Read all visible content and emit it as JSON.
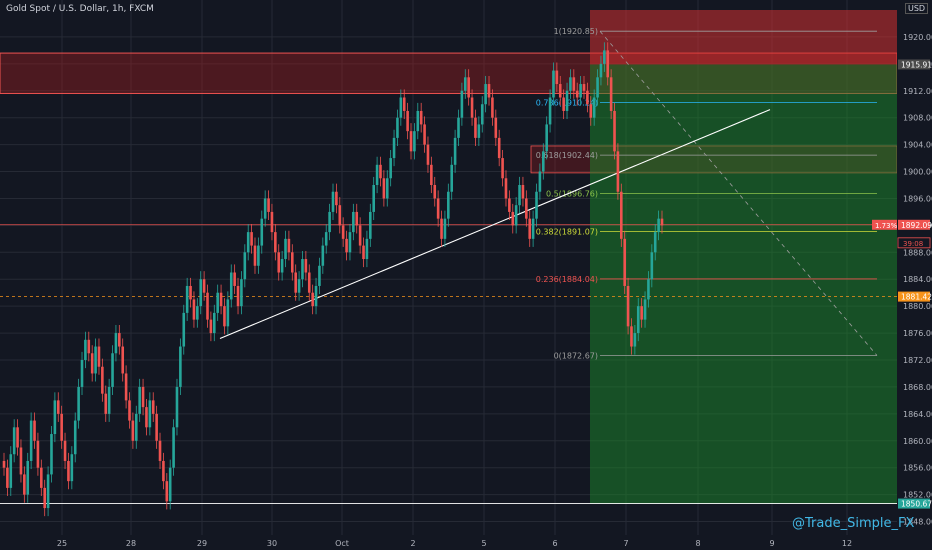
{
  "header": {
    "title": "Gold Spot / U.S. Dollar, 1h, FXCM",
    "currency": "USD"
  },
  "watermark": "@Trade_Simple_FX",
  "colors": {
    "bg": "#131722",
    "up": "#26a69a",
    "down": "#ef5350",
    "grid": "#262a35",
    "axis_text": "#b2b5be"
  },
  "chart_data": {
    "type": "candlestick",
    "title": "Gold Spot / U.S. Dollar, 1h, FXCM",
    "ylim": [
      1846,
      1924
    ],
    "y_ticks": [
      1848,
      1852,
      1856,
      1860,
      1864,
      1868,
      1872,
      1876,
      1880,
      1884,
      1888,
      1892,
      1896,
      1900,
      1904,
      1908,
      1912,
      1916,
      1920
    ],
    "x_ticks": [
      "25",
      "28",
      "29",
      "30",
      "Oct",
      "2",
      "5",
      "6",
      "7",
      "8",
      "9",
      "12"
    ],
    "price_labels": [
      {
        "text": "1915.91",
        "price": 1915.91,
        "color": "#4a4a4a"
      },
      {
        "text": "1.73%",
        "price": 1892.09,
        "color": "#ef5350"
      },
      {
        "text": "1892.09",
        "price": 1892.09,
        "color": "#ef5350"
      },
      {
        "text": "39:08",
        "price": 1890.3,
        "color": "#ef5350"
      },
      {
        "text": "1881.42",
        "price": 1881.42,
        "color": "#f7931a"
      },
      {
        "text": "1850.67",
        "price": 1850.67,
        "color": "#26a69a"
      }
    ],
    "fib_levels": [
      {
        "label": "1(1920.85)",
        "price": 1920.85,
        "color": "#9e9e9e"
      },
      {
        "label": "0.786(1910.24)",
        "price": 1910.24,
        "color": "#29b6f6"
      },
      {
        "label": "0.618(1902.44)",
        "price": 1902.44,
        "color": "#9e9e9e"
      },
      {
        "label": "0.5(1896.76)",
        "price": 1896.76,
        "color": "#8bc34a"
      },
      {
        "label": "0.382(1891.07)",
        "price": 1891.07,
        "color": "#cddc39"
      },
      {
        "label": "0.236(1884.04)",
        "price": 1884.04,
        "color": "#ef5350"
      },
      {
        "label": "0(1872.67)",
        "price": 1872.67,
        "color": "#9e9e9e"
      }
    ],
    "candles_close": [
      1856,
      1853,
      1858,
      1862,
      1859,
      1855,
      1852,
      1857,
      1863,
      1860,
      1856,
      1853,
      1850,
      1855,
      1861,
      1866,
      1864,
      1860,
      1857,
      1854,
      1858,
      1863,
      1868,
      1872,
      1875,
      1873,
      1870,
      1874,
      1871,
      1867,
      1864,
      1868,
      1873,
      1876,
      1874,
      1870,
      1866,
      1863,
      1860,
      1864,
      1868,
      1865,
      1862,
      1866,
      1864,
      1860,
      1857,
      1854,
      1851,
      1856,
      1862,
      1868,
      1874,
      1879,
      1883,
      1881,
      1878,
      1880,
      1884,
      1882,
      1878,
      1876,
      1879,
      1882,
      1880,
      1877,
      1881,
      1885,
      1883,
      1880,
      1884,
      1888,
      1891,
      1889,
      1886,
      1889,
      1893,
      1896,
      1894,
      1891,
      1888,
      1885,
      1887,
      1890,
      1888,
      1885,
      1882,
      1884,
      1887,
      1885,
      1882,
      1880,
      1883,
      1886,
      1889,
      1891,
      1894,
      1897,
      1895,
      1892,
      1890,
      1888,
      1891,
      1894,
      1892,
      1889,
      1887,
      1890,
      1894,
      1898,
      1901,
      1899,
      1896,
      1899,
      1902,
      1905,
      1908,
      1911,
      1909,
      1906,
      1903,
      1906,
      1909,
      1907,
      1904,
      1901,
      1898,
      1896,
      1893,
      1890,
      1893,
      1897,
      1901,
      1905,
      1908,
      1912,
      1914,
      1911,
      1908,
      1905,
      1907,
      1910,
      1913,
      1911,
      1908,
      1905,
      1902,
      1899,
      1896,
      1894,
      1892,
      1895,
      1898,
      1896,
      1893,
      1890,
      1893,
      1897,
      1900,
      1903,
      1907,
      1911,
      1915,
      1913,
      1911,
      1909,
      1912,
      1914,
      1912,
      1911,
      1913,
      1912,
      1910,
      1908,
      1911,
      1914,
      1916,
      1918,
      1914,
      1909,
      1903,
      1897,
      1890,
      1883,
      1877,
      1874,
      1876,
      1880,
      1878,
      1881,
      1884,
      1888,
      1891,
      1893,
      1892
    ]
  }
}
